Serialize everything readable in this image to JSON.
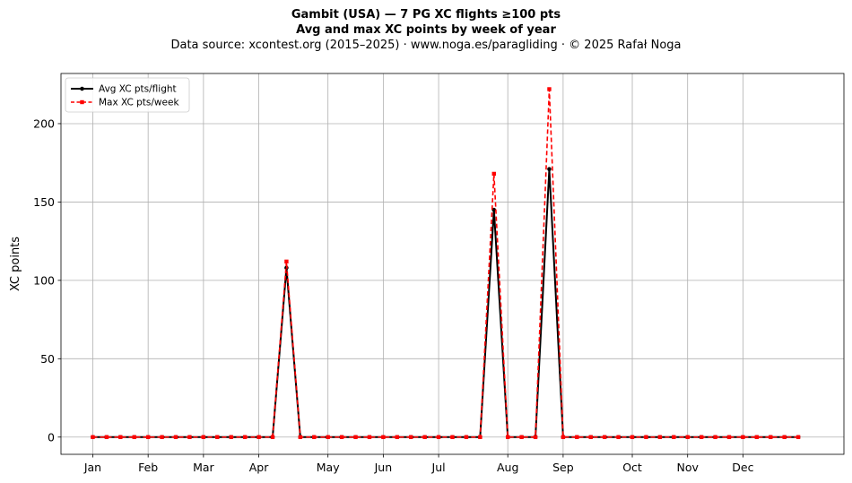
{
  "chart_data": {
    "type": "line",
    "title_lines": [
      "Gambit (USA)  —  7 PG XC flights ≥100 pts",
      "Avg and max XC points by week of year"
    ],
    "subtitle": "Data source: xcontest.org (2015–2025)  ·  www.noga.es/paragliding  ·  © 2025 Rafał Noga",
    "xlabel": "",
    "ylabel": "XC points",
    "x_tick_labels": [
      {
        "label": "Jan",
        "week": 1
      },
      {
        "label": "Feb",
        "week": 5
      },
      {
        "label": "Mar",
        "week": 9
      },
      {
        "label": "Apr",
        "week": 13
      },
      {
        "label": "May",
        "week": 18
      },
      {
        "label": "Jun",
        "week": 22
      },
      {
        "label": "Jul",
        "week": 26
      },
      {
        "label": "Aug",
        "week": 31
      },
      {
        "label": "Sep",
        "week": 35
      },
      {
        "label": "Oct",
        "week": 40
      },
      {
        "label": "Nov",
        "week": 44
      },
      {
        "label": "Dec",
        "week": 48
      }
    ],
    "y_ticks": [
      0,
      50,
      100,
      150,
      200
    ],
    "xlim": [
      -1.3,
      55.3
    ],
    "ylim": [
      -11,
      232
    ],
    "grid": true,
    "legend_position": "top-left",
    "x": [
      1,
      2,
      3,
      4,
      5,
      6,
      7,
      8,
      9,
      10,
      11,
      12,
      13,
      14,
      15,
      16,
      17,
      18,
      19,
      20,
      21,
      22,
      23,
      24,
      25,
      26,
      27,
      28,
      29,
      30,
      31,
      32,
      33,
      34,
      35,
      36,
      37,
      38,
      39,
      40,
      41,
      42,
      43,
      44,
      45,
      46,
      47,
      48,
      49,
      50,
      51,
      52
    ],
    "series": [
      {
        "name": "Avg XC pts/flight",
        "color": "#000000",
        "style": "solid",
        "marker": "circle",
        "values": [
          0,
          0,
          0,
          0,
          0,
          0,
          0,
          0,
          0,
          0,
          0,
          0,
          0,
          0,
          108,
          0,
          0,
          0,
          0,
          0,
          0,
          0,
          0,
          0,
          0,
          0,
          0,
          0,
          0,
          145,
          0,
          0,
          0,
          171,
          0,
          0,
          0,
          0,
          0,
          0,
          0,
          0,
          0,
          0,
          0,
          0,
          0,
          0,
          0,
          0,
          0,
          0
        ]
      },
      {
        "name": "Max XC pts/week",
        "color": "#ff0000",
        "style": "dashed",
        "marker": "square",
        "values": [
          0,
          0,
          0,
          0,
          0,
          0,
          0,
          0,
          0,
          0,
          0,
          0,
          0,
          0,
          112,
          0,
          0,
          0,
          0,
          0,
          0,
          0,
          0,
          0,
          0,
          0,
          0,
          0,
          0,
          168,
          0,
          0,
          0,
          222,
          0,
          0,
          0,
          0,
          0,
          0,
          0,
          0,
          0,
          0,
          0,
          0,
          0,
          0,
          0,
          0,
          0,
          0
        ]
      }
    ]
  }
}
